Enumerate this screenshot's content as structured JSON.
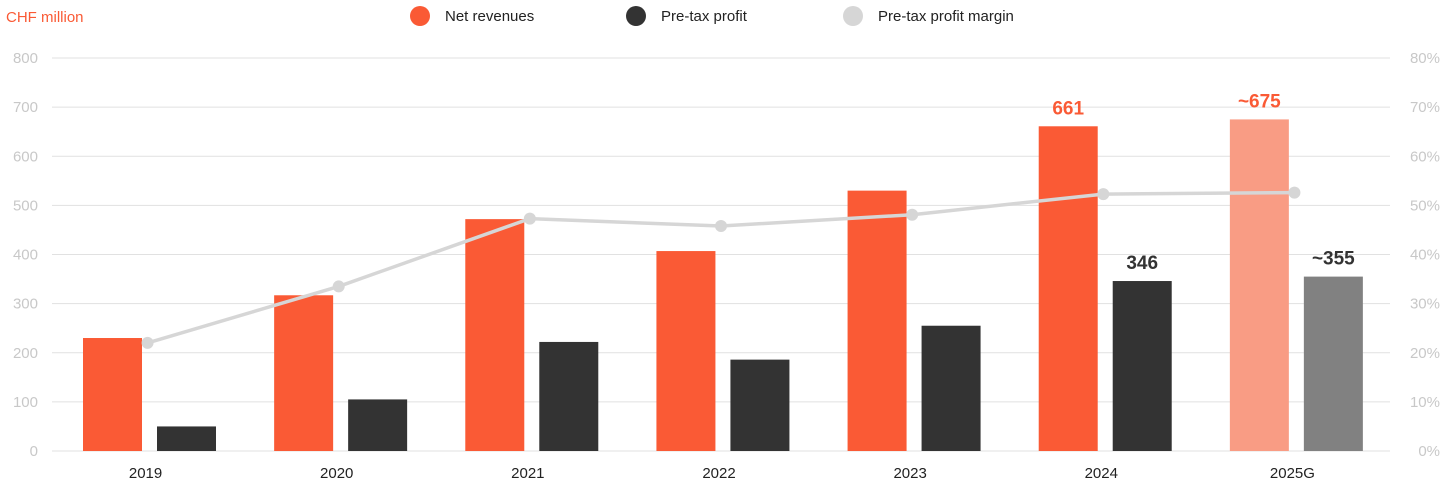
{
  "chart_data": {
    "type": "bar",
    "unit_label": "CHF million",
    "categories": [
      "2019",
      "2020",
      "2021",
      "2022",
      "2023",
      "2024",
      "2025G"
    ],
    "series": [
      {
        "name": "Net revenues",
        "kind": "bar",
        "axis": "left",
        "color": "#fa5a35",
        "values": [
          230,
          317,
          472,
          407,
          530,
          661,
          675
        ],
        "value_labels": [
          "",
          "",
          "",
          "",
          "",
          "661",
          "~675"
        ]
      },
      {
        "name": "Pre-tax profit",
        "kind": "bar",
        "axis": "left",
        "color": "#333333",
        "values": [
          50,
          105,
          222,
          186,
          255,
          346,
          355
        ],
        "value_labels": [
          "",
          "",
          "",
          "",
          "",
          "346",
          "~355"
        ]
      },
      {
        "name": "Pre-tax profit margin",
        "kind": "line",
        "axis": "right",
        "color": "#d6d6d6",
        "values": [
          22,
          33.5,
          47.3,
          45.8,
          48.1,
          52.3,
          52.6
        ]
      }
    ],
    "highlighted_categories": [
      "2025G"
    ],
    "highlight_colors": {
      "Net revenues": "#f99c84",
      "Pre-tax profit": "#818181"
    },
    "y_left": {
      "ylim": [
        0,
        800
      ],
      "ticks": [
        "0",
        "100",
        "200",
        "300",
        "400",
        "500",
        "600",
        "700",
        "800"
      ]
    },
    "y_right": {
      "ylim": [
        0,
        80
      ],
      "ticks": [
        "0%",
        "10%",
        "20%",
        "30%",
        "40%",
        "50%",
        "60%",
        "70%",
        "80%"
      ]
    },
    "grid": true,
    "legend_position": "top-center",
    "colors": {
      "accent": "#fa5a35",
      "grid": "#e1e1e1",
      "tick": "#c8c8c8"
    }
  }
}
